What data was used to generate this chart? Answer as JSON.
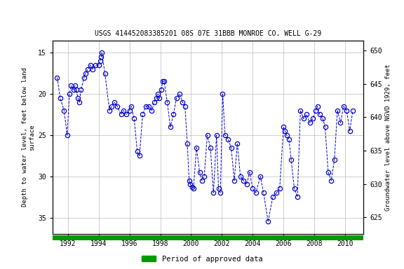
{
  "title": "USGS 414452083385201 08S 07E 31BBB MONROE CO. WELL G-29",
  "ylabel_left": "Depth to water level, feet below land\nsurface",
  "ylabel_right": "Groundwater level above NGVD 1929, feet",
  "ylim_left": [
    13.5,
    37.0
  ],
  "ylim_right": [
    622.5,
    651.5
  ],
  "xlim": [
    1991.0,
    2011.2
  ],
  "xticks": [
    1992,
    1994,
    1996,
    1998,
    2000,
    2002,
    2004,
    2006,
    2008,
    2010
  ],
  "yticks_left": [
    15,
    20,
    25,
    30,
    35
  ],
  "yticks_right": [
    625,
    630,
    635,
    640,
    645,
    650
  ],
  "grid_color": "#bbbbbb",
  "line_color": "#0000cc",
  "marker_color": "#0000cc",
  "legend_label": "Period of approved data",
  "legend_color": "#009900",
  "data_x": [
    1991.3,
    1991.5,
    1991.75,
    1991.95,
    1992.1,
    1992.2,
    1992.35,
    1992.45,
    1992.55,
    1992.65,
    1992.75,
    1992.85,
    1993.05,
    1993.15,
    1993.3,
    1993.45,
    1993.6,
    1993.8,
    1994.0,
    1994.1,
    1994.15,
    1994.2,
    1994.4,
    1994.7,
    1994.85,
    1995.0,
    1995.2,
    1995.45,
    1995.6,
    1995.8,
    1996.0,
    1996.1,
    1996.3,
    1996.5,
    1996.65,
    1996.85,
    1997.05,
    1997.25,
    1997.45,
    1997.6,
    1997.75,
    1997.85,
    1997.95,
    1998.05,
    1998.15,
    1998.25,
    1998.45,
    1998.65,
    1998.85,
    1999.05,
    1999.25,
    1999.45,
    1999.6,
    1999.75,
    1999.87,
    1999.95,
    2000.05,
    2000.15,
    2000.35,
    2000.55,
    2000.7,
    2000.85,
    2001.05,
    2001.25,
    2001.45,
    2001.65,
    2001.78,
    2001.9,
    2002.05,
    2002.2,
    2002.4,
    2002.6,
    2002.8,
    2003.0,
    2003.2,
    2003.4,
    2003.6,
    2003.8,
    2004.0,
    2004.2,
    2004.5,
    2004.7,
    2005.0,
    2005.3,
    2005.55,
    2005.75,
    2006.0,
    2006.1,
    2006.2,
    2006.35,
    2006.5,
    2006.7,
    2006.9,
    2007.1,
    2007.3,
    2007.5,
    2007.7,
    2007.9,
    2008.1,
    2008.2,
    2008.35,
    2008.55,
    2008.7,
    2008.9,
    2009.1,
    2009.3,
    2009.5,
    2009.7,
    2009.9,
    2010.1,
    2010.3,
    2010.5
  ],
  "data_y": [
    18.0,
    20.5,
    22.0,
    25.0,
    20.0,
    19.0,
    19.5,
    19.0,
    19.5,
    20.5,
    21.0,
    19.5,
    18.0,
    17.5,
    17.0,
    16.5,
    17.0,
    16.5,
    16.5,
    16.0,
    15.5,
    15.0,
    17.5,
    22.0,
    21.5,
    21.0,
    21.5,
    22.5,
    22.0,
    22.5,
    22.0,
    21.5,
    23.0,
    27.0,
    27.5,
    22.5,
    21.5,
    21.5,
    22.0,
    21.0,
    20.5,
    20.0,
    20.5,
    19.5,
    18.5,
    18.5,
    21.0,
    24.0,
    22.5,
    20.5,
    20.0,
    21.0,
    21.5,
    26.0,
    30.5,
    31.0,
    31.3,
    31.5,
    26.5,
    29.5,
    30.5,
    30.0,
    25.0,
    26.5,
    32.0,
    25.0,
    31.5,
    32.0,
    20.0,
    25.0,
    25.5,
    26.5,
    30.5,
    26.0,
    30.0,
    30.5,
    31.0,
    29.5,
    31.5,
    32.0,
    30.0,
    32.0,
    35.5,
    32.5,
    32.0,
    31.5,
    24.0,
    24.5,
    25.0,
    25.5,
    28.0,
    31.5,
    32.5,
    22.0,
    23.0,
    22.5,
    23.5,
    23.0,
    22.0,
    21.5,
    22.5,
    23.0,
    24.0,
    29.5,
    30.5,
    28.0,
    22.0,
    23.5,
    21.5,
    22.0,
    24.5,
    22.0
  ]
}
